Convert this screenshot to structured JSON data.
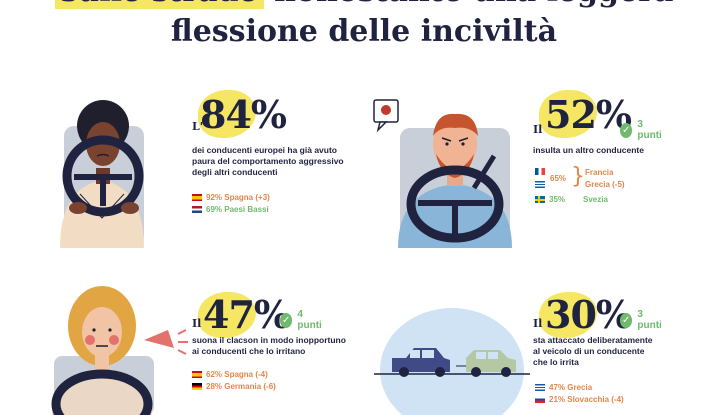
{
  "title": {
    "line1_highlight": "sulle strade",
    "line1_rest": " nonostante una leggera",
    "line2": "flessione delle inciviltà"
  },
  "panels": [
    {
      "prefix": "L'",
      "percent": "84%",
      "description": [
        "dei conducenti europei ha già avuto",
        "paura del comportamento aggressivo",
        "degli altri conducenti"
      ],
      "stats": [
        {
          "text": "92% Spagna (+3)",
          "color": "orange",
          "flag": "spain"
        },
        {
          "text": "69% Paesi Bassi",
          "color": "green",
          "flag": "netherlands"
        }
      ]
    },
    {
      "prefix": "Il",
      "percent": "52%",
      "change": "3 punti",
      "description": [
        "insulta un altro conducente"
      ],
      "group_value": "65%",
      "group_countries": [
        "Francia",
        "Grecia (-5)"
      ],
      "stats": [
        {
          "text": "35%",
          "label": "Svezia",
          "color": "green",
          "flag": "sweden"
        }
      ]
    },
    {
      "prefix": "Il",
      "percent": "47%",
      "change": "4 punti",
      "description": [
        "suona il clacson in modo inopportuno",
        "ai conducenti che lo irritano"
      ],
      "stats": [
        {
          "text": "62% Spagna (-4)",
          "color": "orange",
          "flag": "spain"
        },
        {
          "text": "28% Germania (-6)",
          "color": "orange",
          "flag": "germany"
        }
      ]
    },
    {
      "prefix": "Il",
      "percent": "30%",
      "change": "3 punti",
      "description": [
        "sta attaccato deliberatamente",
        "al veicolo di un conducente",
        "che lo irrita"
      ],
      "stats": [
        {
          "text": "47% Grecia",
          "color": "orange",
          "flag": "greece"
        },
        {
          "text": "21% Slovacchia (-4)",
          "color": "orange",
          "flag": "slovakia"
        }
      ]
    }
  ]
}
